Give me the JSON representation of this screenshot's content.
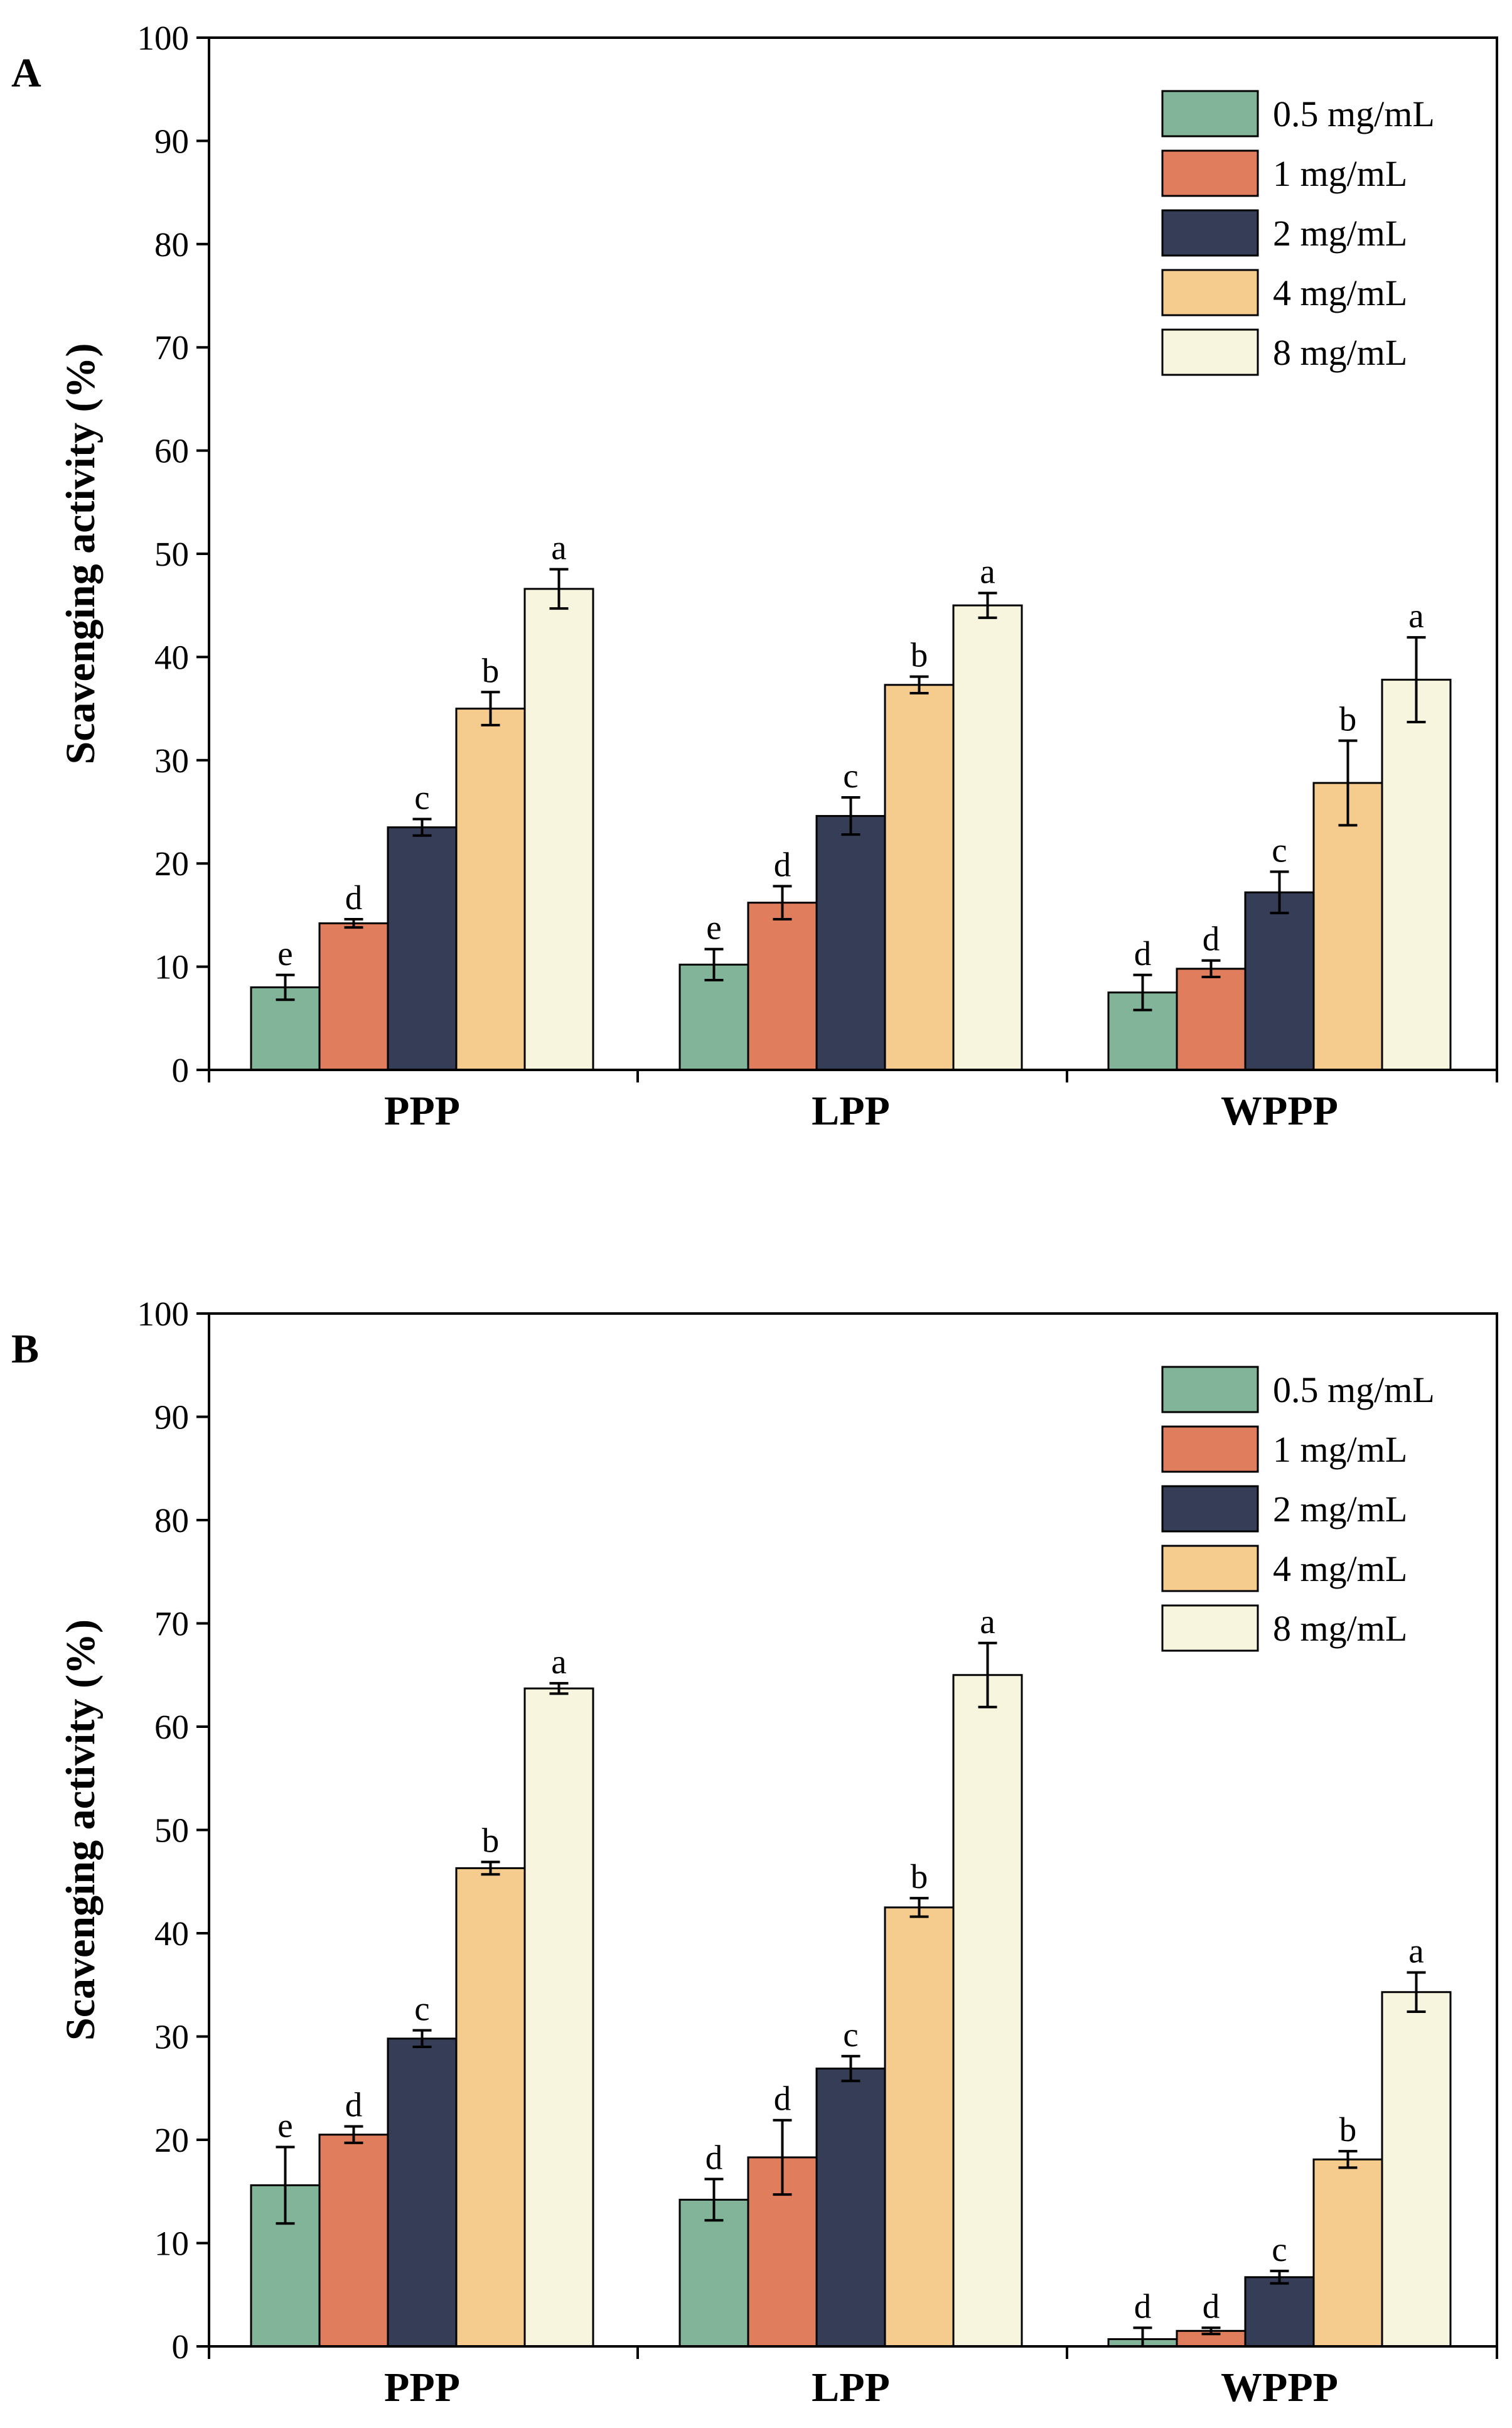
{
  "chart_data": [
    {
      "panel": "A",
      "type": "bar",
      "ylabel": "Scavenging activity (%)",
      "ylim": [
        0,
        100
      ],
      "yticks": [
        0,
        10,
        20,
        30,
        40,
        50,
        60,
        70,
        80,
        90,
        100
      ],
      "categories": [
        "PPP",
        "LPP",
        "WPPP"
      ],
      "legend_position": "top-right",
      "series": [
        {
          "name": "0.5 mg/mL",
          "color": "#82B49A",
          "values": [
            8.0,
            10.2,
            7.5
          ],
          "errors": [
            1.2,
            1.5,
            1.7
          ],
          "letters": [
            "e",
            "e",
            "d"
          ]
        },
        {
          "name": "1 mg/mL",
          "color": "#E07D5C",
          "values": [
            14.2,
            16.2,
            9.8
          ],
          "errors": [
            0.4,
            1.6,
            0.8
          ],
          "letters": [
            "d",
            "d",
            "d"
          ]
        },
        {
          "name": "2 mg/mL",
          "color": "#363E57",
          "values": [
            23.5,
            24.6,
            17.2
          ],
          "errors": [
            0.8,
            1.8,
            2.0
          ],
          "letters": [
            "c",
            "c",
            "c"
          ]
        },
        {
          "name": "4 mg/mL",
          "color": "#F6CB8E",
          "values": [
            35.0,
            37.3,
            27.8
          ],
          "errors": [
            1.6,
            0.8,
            4.1
          ],
          "letters": [
            "b",
            "b",
            "b"
          ]
        },
        {
          "name": "8 mg/mL",
          "color": "#F7F5DE",
          "values": [
            46.6,
            45.0,
            37.8
          ],
          "errors": [
            1.9,
            1.2,
            4.1
          ],
          "letters": [
            "a",
            "a",
            "a"
          ]
        }
      ]
    },
    {
      "panel": "B",
      "type": "bar",
      "ylabel": "Scavenging activity (%)",
      "ylim": [
        0,
        100
      ],
      "yticks": [
        0,
        10,
        20,
        30,
        40,
        50,
        60,
        70,
        80,
        90,
        100
      ],
      "categories": [
        "PPP",
        "LPP",
        "WPPP"
      ],
      "legend_position": "top-right",
      "series": [
        {
          "name": "0.5 mg/mL",
          "color": "#82B49A",
          "values": [
            15.6,
            14.2,
            0.7
          ],
          "errors": [
            3.7,
            2.0,
            1.1
          ],
          "letters": [
            "e",
            "d",
            "d"
          ]
        },
        {
          "name": "1 mg/mL",
          "color": "#E07D5C",
          "values": [
            20.5,
            18.3,
            1.5
          ],
          "errors": [
            0.8,
            3.6,
            0.3
          ],
          "letters": [
            "d",
            "d",
            "d"
          ]
        },
        {
          "name": "2 mg/mL",
          "color": "#363E57",
          "values": [
            29.8,
            26.9,
            6.7
          ],
          "errors": [
            0.8,
            1.2,
            0.6
          ],
          "letters": [
            "c",
            "c",
            "c"
          ]
        },
        {
          "name": "4 mg/mL",
          "color": "#F6CB8E",
          "values": [
            46.3,
            42.5,
            18.1
          ],
          "errors": [
            0.6,
            0.9,
            0.8
          ],
          "letters": [
            "b",
            "b",
            "b"
          ]
        },
        {
          "name": "8 mg/mL",
          "color": "#F7F5DE",
          "values": [
            63.7,
            65.0,
            34.3
          ],
          "errors": [
            0.5,
            3.1,
            1.9
          ],
          "letters": [
            "a",
            "a",
            "a"
          ]
        }
      ]
    }
  ]
}
